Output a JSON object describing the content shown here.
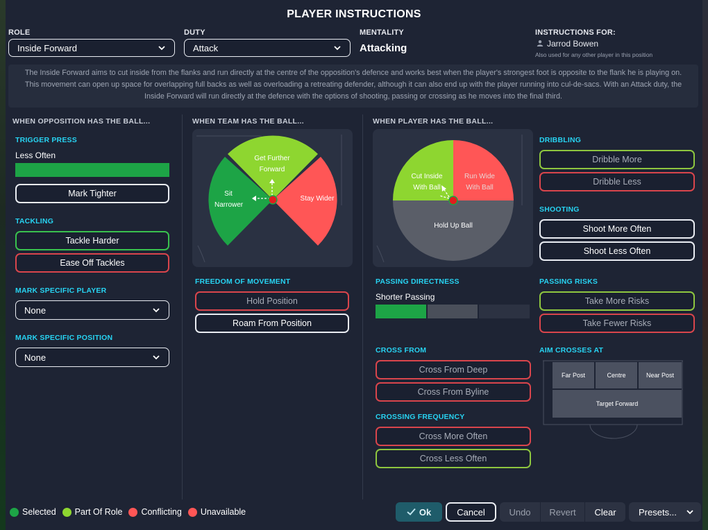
{
  "dialog": {
    "title": "PLAYER INSTRUCTIONS"
  },
  "header": {
    "role_label": "ROLE",
    "role_value": "Inside Forward",
    "duty_label": "DUTY",
    "duty_value": "Attack",
    "mentality_label": "MENTALITY",
    "mentality_value": "Attacking",
    "instructions_for_label": "INSTRUCTIONS FOR:",
    "player_name": "Jarrod Bowen",
    "player_note": "Also used for any other player in this position"
  },
  "description": "The Inside Forward aims to cut inside from the flanks and run directly at the centre of the opposition's defence and works best when the player's strongest foot is opposite to the flank he is playing on. This movement can open up space for overlapping full backs as well as overloading a retreating defender, although it can also end up with the player running into cul-de-sacs. With an Attack duty, the Inside Forward will run directly at the defence with the options of shooting, passing or crossing as he moves into the final third.",
  "opposition": {
    "heading": "WHEN OPPOSITION HAS THE BALL...",
    "trigger_press_label": "TRIGGER PRESS",
    "trigger_press_value": "Less Often",
    "trigger_press_level": 1.0,
    "mark_tighter": "Mark Tighter",
    "tackling_label": "TACKLING",
    "tackle_harder": "Tackle Harder",
    "ease_off_tackles": "Ease Off Tackles",
    "mark_player_label": "MARK SPECIFIC PLAYER",
    "mark_player_value": "None",
    "mark_position_label": "MARK SPECIFIC POSITION",
    "mark_position_value": "None"
  },
  "team": {
    "heading": "WHEN TEAM HAS THE BALL...",
    "wheel": {
      "sit_narrower": "Sit Narrower",
      "get_further_forward": "Get Further Forward",
      "stay_wider": "Stay Wider"
    },
    "freedom_label": "FREEDOM OF MOVEMENT",
    "hold_position": "Hold Position",
    "roam_from_position": "Roam From Position"
  },
  "player": {
    "heading": "WHEN PLAYER HAS THE BALL...",
    "wheel": {
      "cut_inside": "Cut Inside With Ball",
      "run_wide": "Run Wide With Ball",
      "hold_up_ball": "Hold Up Ball"
    },
    "passing_directness_label": "PASSING DIRECTNESS",
    "passing_directness_value": "Shorter Passing",
    "passing_directness_step": 1,
    "passing_directness_steps": 3,
    "cross_from_label": "CROSS FROM",
    "cross_from_deep": "Cross From Deep",
    "cross_from_byline": "Cross From Byline",
    "crossing_frequency_label": "CROSSING FREQUENCY",
    "cross_more_often": "Cross More Often",
    "cross_less_often": "Cross Less Often",
    "dribbling_label": "DRIBBLING",
    "dribble_more": "Dribble More",
    "dribble_less": "Dribble Less",
    "shooting_label": "SHOOTING",
    "shoot_more_often": "Shoot More Often",
    "shoot_less_often": "Shoot Less Often",
    "passing_risks_label": "PASSING RISKS",
    "take_more_risks": "Take More Risks",
    "take_fewer_risks": "Take Fewer Risks",
    "aim_crosses_label": "AIM CROSSES AT",
    "far_post": "Far Post",
    "centre": "Centre",
    "near_post": "Near Post",
    "target_forward": "Target Forward"
  },
  "legend": {
    "selected": "Selected",
    "part_of_role": "Part Of Role",
    "conflicting": "Conflicting",
    "unavailable": "Unavailable"
  },
  "colors": {
    "selected": "#1da446",
    "part_of_role": "#8ed630",
    "conflicting": "#ff5656",
    "unavailable": "#ff5656",
    "accent": "#27d3f2"
  },
  "footer": {
    "ok": "Ok",
    "cancel": "Cancel",
    "undo": "Undo",
    "revert": "Revert",
    "clear": "Clear",
    "presets": "Presets..."
  }
}
